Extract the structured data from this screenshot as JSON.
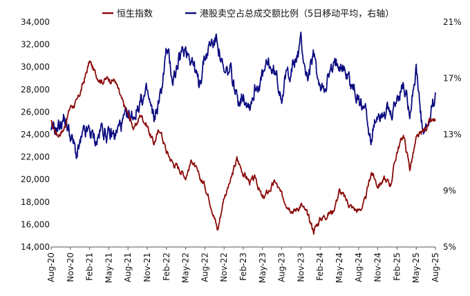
{
  "colors": {
    "hsi": "#8B0A0A",
    "short_ratio": "#0A0A80",
    "axis": "#555555"
  },
  "legend": [
    {
      "label": "恒生指数",
      "color": "#8B0A0A"
    },
    {
      "label": "港股卖空占总成交额比例（5日移动平均，右轴）",
      "color": "#0A0A80"
    }
  ],
  "chart_data": {
    "type": "line",
    "title": "",
    "xlabel": "",
    "ylabel": "",
    "x_ticks": [
      "Aug-20",
      "Nov-20",
      "Feb-21",
      "May-21",
      "Aug-21",
      "Nov-21",
      "Feb-22",
      "May-22",
      "Aug-22",
      "Nov-22",
      "Feb-23",
      "May-23",
      "Aug-23",
      "Nov-23",
      "Feb-24",
      "May-24",
      "Aug-24",
      "Nov-24",
      "Feb-25",
      "May-25",
      "Aug-25"
    ],
    "x_range": [
      "2020-08",
      "2025-08"
    ],
    "y_left": {
      "ylim": [
        14000,
        34000
      ],
      "ticks": [
        "14,000",
        "16,000",
        "18,000",
        "20,000",
        "22,000",
        "24,000",
        "26,000",
        "28,000",
        "30,000",
        "32,000",
        "34,000"
      ]
    },
    "y_right": {
      "ylim": [
        5,
        21
      ],
      "ticks": [
        "5%",
        "9%",
        "13%",
        "17%",
        "21%"
      ]
    },
    "series": [
      {
        "name": "恒生指数",
        "axis": "left",
        "x": [
          "2020-08",
          "2020-09",
          "2020-10",
          "2020-11",
          "2020-12",
          "2021-01",
          "2021-02",
          "2021-03",
          "2021-04",
          "2021-05",
          "2021-06",
          "2021-07",
          "2021-08",
          "2021-09",
          "2021-10",
          "2021-11",
          "2021-12",
          "2022-01",
          "2022-02",
          "2022-03",
          "2022-04",
          "2022-05",
          "2022-06",
          "2022-07",
          "2022-08",
          "2022-09",
          "2022-10",
          "2022-11",
          "2022-12",
          "2023-01",
          "2023-02",
          "2023-03",
          "2023-04",
          "2023-05",
          "2023-06",
          "2023-07",
          "2023-08",
          "2023-09",
          "2023-10",
          "2023-11",
          "2023-12",
          "2024-01",
          "2024-02",
          "2024-03",
          "2024-04",
          "2024-05",
          "2024-06",
          "2024-07",
          "2024-08",
          "2024-09",
          "2024-10",
          "2024-11",
          "2024-12",
          "2025-01",
          "2025-02",
          "2025-03",
          "2025-04",
          "2025-05",
          "2025-06",
          "2025-07",
          "2025-08"
        ],
        "values": [
          25000,
          24000,
          24500,
          26500,
          26800,
          28500,
          30500,
          29300,
          28800,
          29000,
          28800,
          27000,
          25800,
          24500,
          25800,
          24800,
          23200,
          24500,
          22500,
          21500,
          21000,
          20300,
          21800,
          20300,
          19500,
          17800,
          15500,
          18500,
          19800,
          21800,
          20600,
          19800,
          20000,
          18200,
          19000,
          19800,
          18500,
          17800,
          17200,
          17800,
          16800,
          15500,
          16500,
          16900,
          17200,
          19000,
          18200,
          17500,
          17200,
          18000,
          20700,
          19500,
          20000,
          19600,
          22500,
          24000,
          21000,
          23500,
          24200,
          25000,
          25200
        ]
      },
      {
        "name": "港股卖空占总成交额比例（5日移动平均，右轴）",
        "axis": "right",
        "x": [
          "2020-08",
          "2020-09",
          "2020-10",
          "2020-11",
          "2020-12",
          "2021-01",
          "2021-02",
          "2021-03",
          "2021-04",
          "2021-05",
          "2021-06",
          "2021-07",
          "2021-08",
          "2021-09",
          "2021-10",
          "2021-11",
          "2021-12",
          "2022-01",
          "2022-02",
          "2022-03",
          "2022-04",
          "2022-05",
          "2022-06",
          "2022-07",
          "2022-08",
          "2022-09",
          "2022-10",
          "2022-11",
          "2022-12",
          "2023-01",
          "2023-02",
          "2023-03",
          "2023-04",
          "2023-05",
          "2023-06",
          "2023-07",
          "2023-08",
          "2023-09",
          "2023-10",
          "2023-11",
          "2023-12",
          "2024-01",
          "2024-02",
          "2024-03",
          "2024-04",
          "2024-05",
          "2024-06",
          "2024-07",
          "2024-08",
          "2024-09",
          "2024-10",
          "2024-11",
          "2024-12",
          "2025-01",
          "2025-02",
          "2025-03",
          "2025-04",
          "2025-05",
          "2025-06",
          "2025-07",
          "2025-08"
        ],
        "values": [
          13.0,
          13.5,
          14.2,
          13.0,
          11.5,
          12.8,
          13.2,
          12.5,
          13.5,
          12.8,
          13.0,
          13.8,
          14.0,
          14.5,
          15.5,
          15.8,
          14.0,
          15.5,
          19.0,
          17.0,
          18.2,
          19.2,
          18.5,
          16.5,
          18.5,
          19.5,
          19.8,
          17.0,
          17.5,
          15.5,
          16.0,
          15.2,
          16.5,
          17.0,
          18.0,
          17.2,
          16.0,
          17.5,
          18.0,
          19.5,
          17.0,
          18.5,
          16.0,
          17.0,
          17.5,
          18.5,
          17.5,
          16.5,
          15.5,
          15.0,
          12.5,
          14.5,
          15.0,
          14.0,
          15.5,
          16.5,
          15.0,
          17.5,
          13.0,
          13.5,
          16.0
        ]
      }
    ],
    "grid": false,
    "legend_position": "top"
  }
}
